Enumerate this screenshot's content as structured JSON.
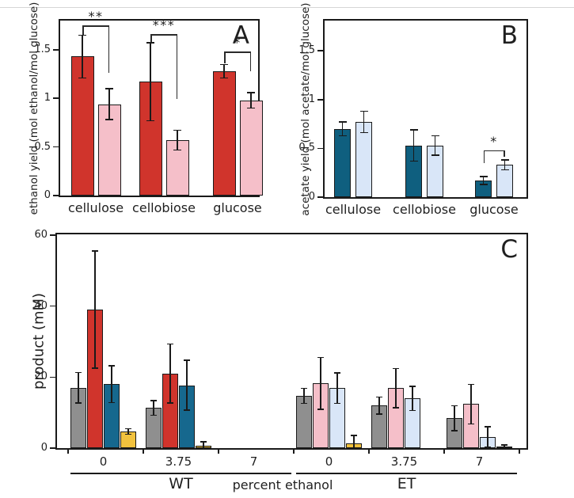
{
  "figure": {
    "background": "#ffffff",
    "top_border_line_color": "#d6d6d6",
    "frame_color": "#1a1a1a",
    "error_bar_color": "#1a1a1a"
  },
  "chart_data": [
    {
      "type": "bar",
      "panel_label": "A",
      "ylabel": "ethanol yield (mol ethanol/mol glucose)",
      "categories": [
        "cellulose",
        "cellobiose",
        "glucose"
      ],
      "yticks": [
        "0",
        "0.5",
        "1",
        "1.5"
      ],
      "ytick_values": [
        0,
        0.5,
        1,
        1.5
      ],
      "ylim": [
        0,
        1.8
      ],
      "grid": false,
      "legend": "none",
      "series": [
        {
          "name": "red_bars",
          "color": "#d0342c",
          "values": [
            1.43,
            1.17,
            1.28
          ],
          "errors": [
            0.22,
            0.4,
            0.07
          ]
        },
        {
          "name": "pink_bars",
          "color": "#f5bfc9",
          "values": [
            0.94,
            0.57,
            0.98
          ],
          "errors": [
            0.16,
            0.1,
            0.08
          ]
        }
      ],
      "significance": [
        {
          "group": 0,
          "label": "**",
          "y": 1.75,
          "drop_left": 0.1,
          "drop_right": 0.49
        },
        {
          "group": 1,
          "label": "***",
          "y": 1.66,
          "drop_left": 0.08,
          "drop_right": 0.67
        },
        {
          "group": 2,
          "label": "*",
          "y": 1.48,
          "drop_left": 0.12,
          "drop_right": 0.2
        }
      ]
    },
    {
      "type": "bar",
      "panel_label": "B",
      "ylabel": "acetate yield (mol acetate/mol glucose)",
      "categories": [
        "cellulose",
        "cellobiose",
        "glucose"
      ],
      "yticks": [
        "0",
        "0.5",
        "1",
        "1.5"
      ],
      "ytick_values": [
        0,
        0.5,
        1,
        1.5
      ],
      "ylim": [
        0,
        1.81
      ],
      "grid": false,
      "legend": "none",
      "series": [
        {
          "name": "dark_teal_bars",
          "color": "#0f5f7f",
          "values": [
            0.7,
            0.53,
            0.17
          ],
          "errors": [
            0.07,
            0.16,
            0.04
          ]
        },
        {
          "name": "light_blue_bars",
          "color": "#d9e6f8",
          "values": [
            0.77,
            0.53,
            0.33
          ],
          "errors": [
            0.11,
            0.1,
            0.05
          ]
        }
      ],
      "significance": [
        {
          "group": 2,
          "label": "*",
          "y": 0.48,
          "drop_left": 0.13,
          "drop_right": 0.07
        }
      ]
    },
    {
      "type": "bar",
      "panel_label": "C",
      "ylabel": "product (mM)",
      "xlabel": "percent ethanol",
      "yticks": [
        "0",
        "20",
        "40",
        "60"
      ],
      "ytick_values": [
        0,
        20,
        40,
        60
      ],
      "ylim": [
        0,
        60.2
      ],
      "grid": false,
      "legend": "none",
      "bar_colors": [
        [
          "#8f8f8f",
          "#d0342c",
          "#16688e",
          "#f2c23e"
        ],
        [
          "#8f8f8f",
          "#f5bfc9",
          "#d9e6f8",
          "#f2c23e"
        ]
      ],
      "strain_groups": [
        {
          "label": "WT",
          "conditions": [
            {
              "ethanol": "0",
              "values": [
                17.0,
                39.0,
                18.0,
                4.7
              ],
              "errors": [
                4.3,
                16.5,
                5.2,
                0.8
              ]
            },
            {
              "ethanol": "3.75",
              "values": [
                11.3,
                21.0,
                17.7,
                0.6
              ],
              "errors": [
                2.1,
                8.3,
                7.0,
                1.2
              ]
            },
            {
              "ethanol": "7",
              "values": [
                0,
                0,
                0,
                0
              ],
              "errors": [
                0,
                0,
                0,
                0
              ]
            }
          ]
        },
        {
          "label": "ET",
          "conditions": [
            {
              "ethanol": "0",
              "values": [
                14.7,
                18.2,
                16.9,
                1.3
              ],
              "errors": [
                2.1,
                7.3,
                4.3,
                2.3
              ]
            },
            {
              "ethanol": "3.75",
              "values": [
                12.0,
                16.9,
                14.0,
                0
              ],
              "errors": [
                2.4,
                5.5,
                3.4,
                0
              ]
            },
            {
              "ethanol": "7",
              "values": [
                8.4,
                12.4,
                3.1,
                0.4
              ],
              "errors": [
                3.5,
                5.6,
                2.9,
                0.5
              ]
            }
          ]
        }
      ]
    }
  ]
}
